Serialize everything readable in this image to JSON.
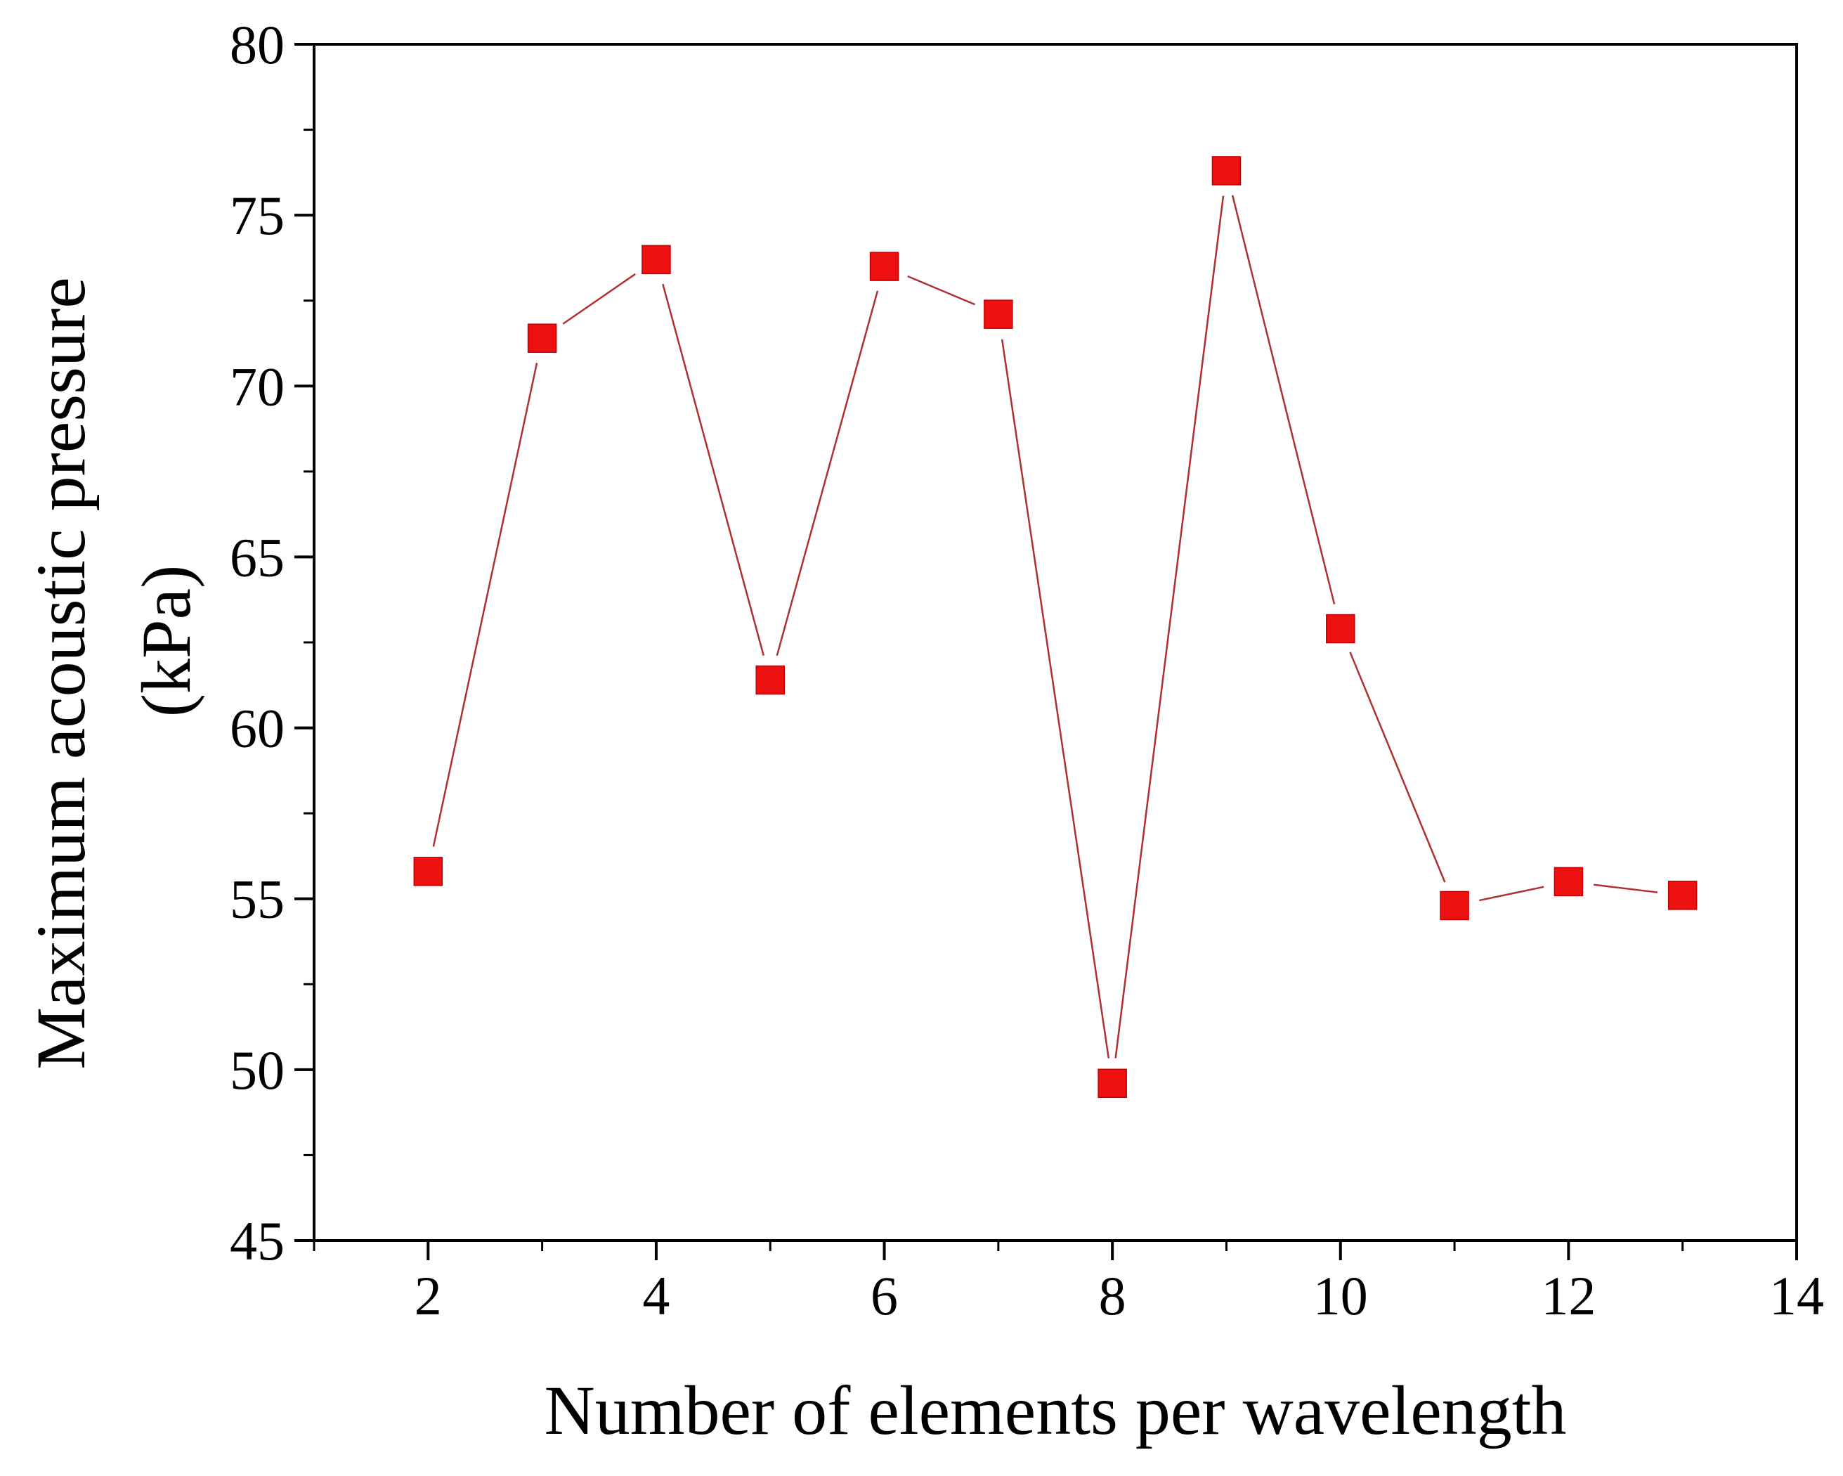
{
  "chart_data": {
    "type": "line",
    "title": "",
    "xlabel": "Number of elements per wavelength",
    "ylabel_line1": "Maximum acoustic pressure",
    "ylabel_line2": "(kPa)",
    "xlim": [
      1,
      14
    ],
    "ylim": [
      45,
      80
    ],
    "xticks": [
      2,
      4,
      6,
      8,
      10,
      12,
      14
    ],
    "yticks": [
      45,
      50,
      55,
      60,
      65,
      70,
      75,
      80
    ],
    "grid": false,
    "legend": "none",
    "series": [
      {
        "name": "Maximum acoustic pressure",
        "marker": "square",
        "marker_color": "#ee1111",
        "line_color": "#b03030",
        "x": [
          2,
          3,
          4,
          5,
          6,
          7,
          8,
          9,
          10,
          11,
          12,
          13
        ],
        "y": [
          55.8,
          71.4,
          73.7,
          61.4,
          73.5,
          72.1,
          49.6,
          76.3,
          62.9,
          54.8,
          55.5,
          55.1
        ]
      }
    ]
  }
}
